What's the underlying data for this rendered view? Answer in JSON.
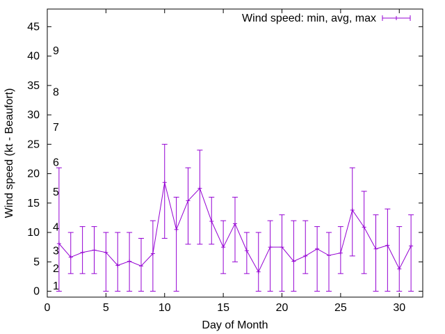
{
  "chart_data": {
    "type": "line",
    "title": "",
    "xlabel": "Day of Month",
    "ylabel": "Wind speed (kt - Beaufort)",
    "xlim": [
      0,
      32
    ],
    "ylim": [
      -1,
      48
    ],
    "x_ticks": [
      0,
      5,
      10,
      15,
      20,
      25,
      30
    ],
    "y_ticks": [
      0,
      5,
      10,
      15,
      20,
      25,
      30,
      35,
      40,
      45
    ],
    "grid": false,
    "legend_position": "top-right",
    "color": "#9400d3",
    "series": [
      {
        "name": "Wind speed: min, avg, max",
        "x": [
          1,
          2,
          3,
          4,
          5,
          6,
          7,
          8,
          9,
          10,
          11,
          12,
          13,
          14,
          15,
          16,
          17,
          18,
          19,
          20,
          21,
          22,
          23,
          24,
          25,
          26,
          27,
          28,
          29,
          30,
          31
        ],
        "avg": [
          8.1,
          5.8,
          6.6,
          7.0,
          6.6,
          4.4,
          5.1,
          4.3,
          6.4,
          18.5,
          10.5,
          15.4,
          17.5,
          11.9,
          7.5,
          11.5,
          6.9,
          3.3,
          7.5,
          7.5,
          5.1,
          6.0,
          7.2,
          6.1,
          6.5,
          13.8,
          10.9,
          7.2,
          7.8,
          3.8,
          7.7
        ],
        "min": [
          0,
          3,
          3,
          3,
          0,
          0,
          0,
          0,
          0,
          9,
          0,
          8,
          8,
          8,
          3,
          5,
          3,
          0,
          0,
          0,
          0,
          3,
          0,
          0,
          3,
          6,
          3,
          0,
          0,
          0,
          0
        ],
        "max": [
          21,
          10,
          11,
          11,
          10,
          10,
          10,
          9,
          12,
          25,
          16,
          21,
          24,
          16,
          12,
          16,
          10,
          10,
          12,
          13,
          12,
          12,
          11,
          10,
          11,
          21,
          17,
          13,
          14,
          11,
          13
        ]
      }
    ],
    "beaufort_labels": [
      {
        "label": "1",
        "y": 1
      },
      {
        "label": "2",
        "y": 4
      },
      {
        "label": "3",
        "y": 7
      },
      {
        "label": "4",
        "y": 11
      },
      {
        "label": "5",
        "y": 17
      },
      {
        "label": "6",
        "y": 22
      },
      {
        "label": "7",
        "y": 28
      },
      {
        "label": "8",
        "y": 34
      },
      {
        "label": "9",
        "y": 41
      }
    ]
  }
}
